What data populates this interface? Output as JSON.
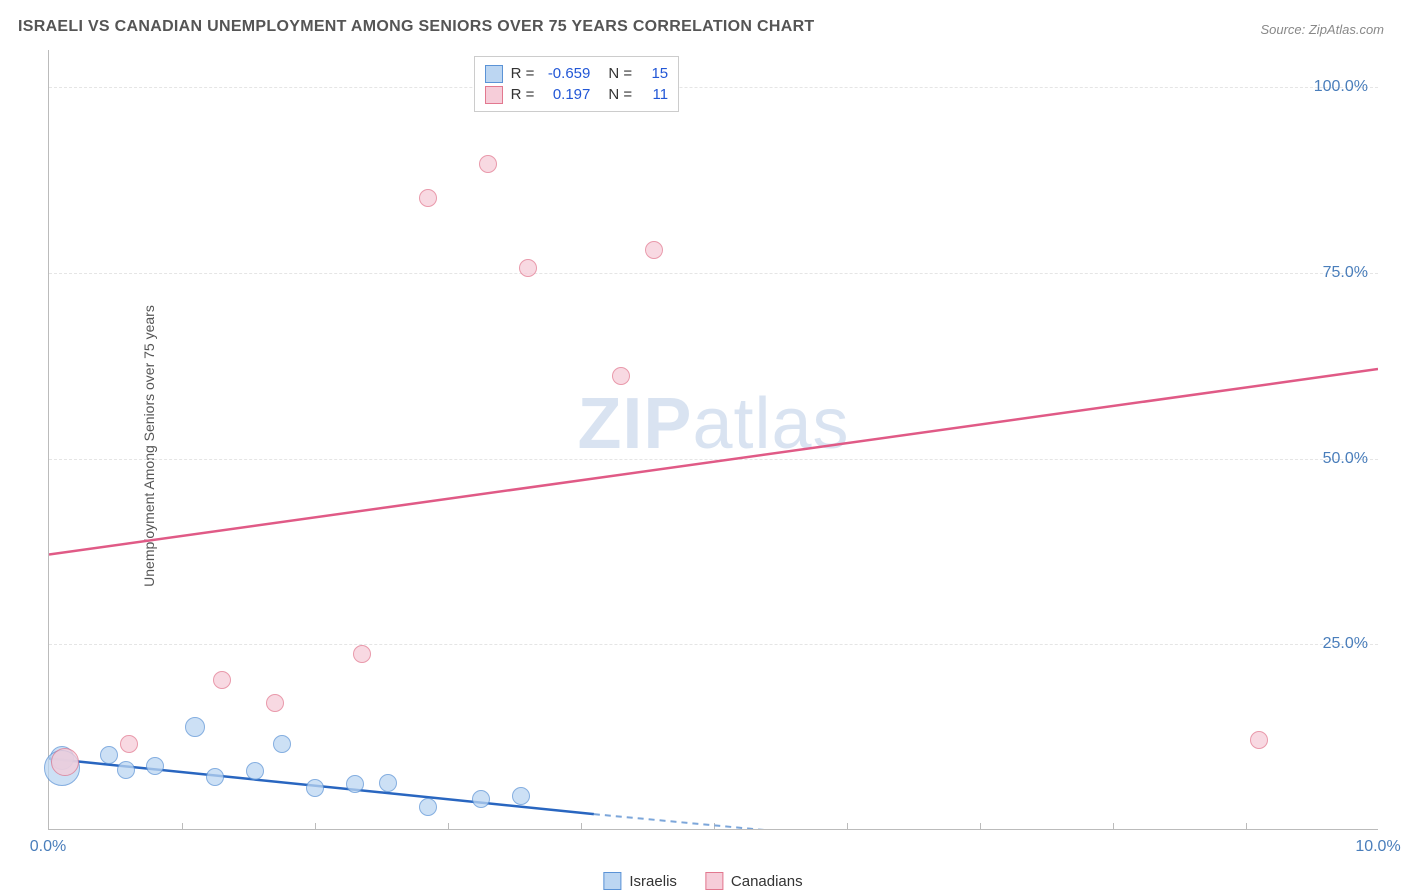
{
  "title": "ISRAELI VS CANADIAN UNEMPLOYMENT AMONG SENIORS OVER 75 YEARS CORRELATION CHART",
  "source": "Source: ZipAtlas.com",
  "y_axis_label": "Unemployment Among Seniors over 75 years",
  "watermark_zip": "ZIP",
  "watermark_atlas": "atlas",
  "chart": {
    "type": "scatter",
    "plot_bg": "#ffffff",
    "grid_color": "#e5e5e5",
    "axis_color": "#bbbbbb",
    "tick_label_color": "#4a7ebb",
    "xlim": [
      0,
      10
    ],
    "ylim": [
      0,
      105
    ],
    "yticks": [
      25,
      50,
      75,
      100
    ],
    "ytick_labels": [
      "25.0%",
      "50.0%",
      "75.0%",
      "100.0%"
    ],
    "xticks_minor": [
      1,
      2,
      3,
      4,
      5,
      6,
      7,
      8,
      9
    ],
    "xticks": [
      0,
      10
    ],
    "xtick_labels": [
      "0.0%",
      "10.0%"
    ],
    "series": [
      {
        "key": "israelis",
        "label": "Israelis",
        "fill": "#bcd6f2",
        "stroke": "#5b93d6",
        "trend_color": "#2966c0",
        "trend_dash_color": "#7ca6da",
        "R": "-0.659",
        "N": "15",
        "trend": {
          "x1": 0,
          "y1": 9.5,
          "x2": 4.1,
          "y2": 2.0,
          "extend_x2": 5.6,
          "extend_y2": -0.5
        },
        "points": [
          {
            "x": 0.1,
            "y": 9.5,
            "r": 12
          },
          {
            "x": 0.1,
            "y": 8.2,
            "r": 18
          },
          {
            "x": 0.45,
            "y": 10.0,
            "r": 9
          },
          {
            "x": 0.58,
            "y": 8.0,
            "r": 9
          },
          {
            "x": 0.8,
            "y": 8.5,
            "r": 9
          },
          {
            "x": 1.1,
            "y": 13.8,
            "r": 10
          },
          {
            "x": 1.25,
            "y": 7.0,
            "r": 9
          },
          {
            "x": 1.55,
            "y": 7.8,
            "r": 9
          },
          {
            "x": 1.75,
            "y": 11.5,
            "r": 9
          },
          {
            "x": 2.0,
            "y": 5.5,
            "r": 9
          },
          {
            "x": 2.3,
            "y": 6.0,
            "r": 9
          },
          {
            "x": 2.55,
            "y": 6.2,
            "r": 9
          },
          {
            "x": 2.85,
            "y": 3.0,
            "r": 9
          },
          {
            "x": 3.25,
            "y": 4.0,
            "r": 9
          },
          {
            "x": 3.55,
            "y": 4.5,
            "r": 9
          }
        ]
      },
      {
        "key": "canadians",
        "label": "Canadians",
        "fill": "#f6cdd9",
        "stroke": "#e2788f",
        "trend_color": "#e05a86",
        "R": "0.197",
        "N": "11",
        "trend": {
          "x1": 0,
          "y1": 37,
          "x2": 10,
          "y2": 62
        },
        "points": [
          {
            "x": 0.12,
            "y": 9.0,
            "r": 14
          },
          {
            "x": 0.6,
            "y": 11.5,
            "r": 9
          },
          {
            "x": 1.3,
            "y": 20.0,
            "r": 9
          },
          {
            "x": 1.7,
            "y": 17.0,
            "r": 9
          },
          {
            "x": 2.35,
            "y": 23.5,
            "r": 9
          },
          {
            "x": 2.85,
            "y": 85.0,
            "r": 9
          },
          {
            "x": 3.3,
            "y": 89.5,
            "r": 9
          },
          {
            "x": 3.6,
            "y": 75.5,
            "r": 9
          },
          {
            "x": 4.3,
            "y": 61.0,
            "r": 9
          },
          {
            "x": 4.55,
            "y": 78.0,
            "r": 9
          },
          {
            "x": 9.1,
            "y": 12.0,
            "r": 9
          }
        ]
      }
    ]
  },
  "legend_top": {
    "R_label": "R =",
    "N_label": "N ="
  },
  "legend_bottom": [
    {
      "series": "israelis"
    },
    {
      "series": "canadians"
    }
  ]
}
